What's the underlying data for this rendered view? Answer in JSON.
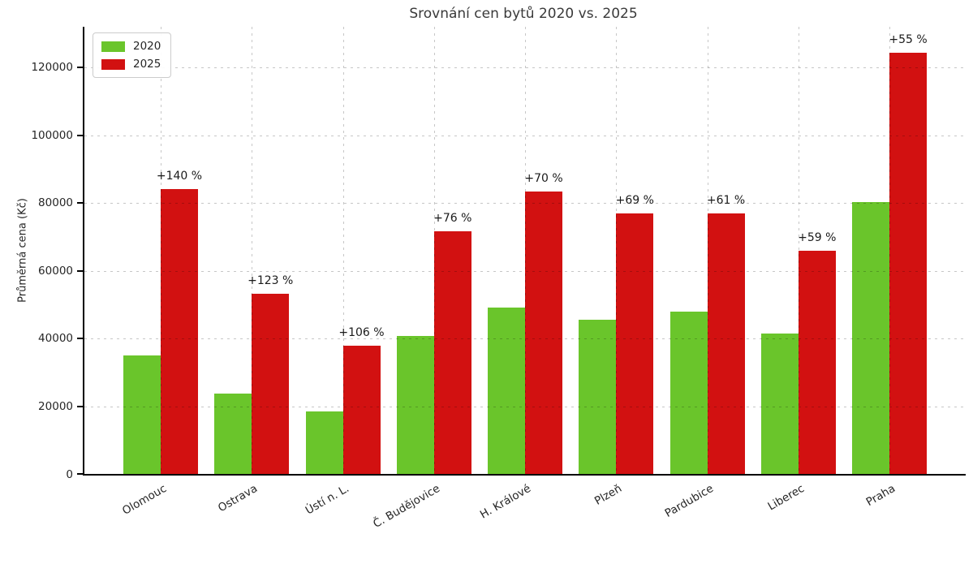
{
  "chart_data": {
    "type": "bar",
    "title": "Srovnání cen bytů 2020 vs. 2025",
    "xlabel": "",
    "ylabel": "Průměrná cena (Kč)",
    "categories": [
      "Olomouc",
      "Ostrava",
      "Ústí n. L.",
      "Č. Budějovice",
      "H. Králové",
      "Plzeň",
      "Pardubice",
      "Liberec",
      "Praha"
    ],
    "series": [
      {
        "name": "2020",
        "color": "#6ac52b",
        "values": [
          35000,
          23800,
          18400,
          40700,
          49000,
          45600,
          47800,
          41500,
          80200
        ]
      },
      {
        "name": "2025",
        "color": "#d21111",
        "values": [
          84000,
          53100,
          37900,
          71600,
          83400,
          77000,
          77000,
          66000,
          124300
        ]
      }
    ],
    "annotations": [
      "+140 %",
      "+123 %",
      "+106 %",
      "+76 %",
      "+70 %",
      "+69 %",
      "+61 %",
      "+59 %",
      "+55 %"
    ],
    "yticks": [
      0,
      20000,
      40000,
      60000,
      80000,
      100000,
      120000
    ],
    "ytick_labels": [
      "0",
      "20000",
      "40000",
      "60000",
      "80000",
      "100000",
      "120000"
    ],
    "ylim": [
      0,
      132000
    ],
    "grid": true,
    "grid_style": "dashed",
    "grid_over_bars": true,
    "legend_position": "upper left",
    "x_tick_rotation": 30,
    "colors": {
      "bar_2020": "#6ac52b",
      "bar_2025": "#d21111",
      "axis": "#000000",
      "grid": "#c8c8c8",
      "text": "#262626",
      "title": "#3a3a3a"
    }
  }
}
